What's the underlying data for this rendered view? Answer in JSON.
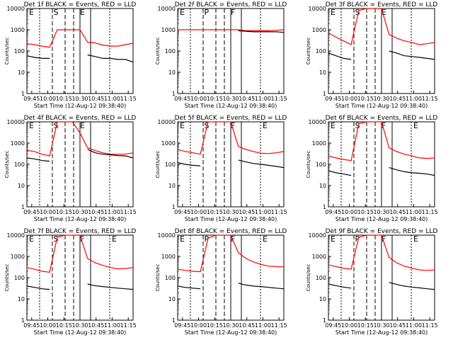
{
  "chart_data": [
    {
      "type": "line",
      "title": "Det 1f BLACK = Events, RED = LLD",
      "ylabel": "Counts/sec",
      "xlabel": "Start Time (12-Aug-12 09:38:40)",
      "xticks": [
        "09:45",
        "10:00",
        "10:15",
        "10:30",
        "10:45",
        "11:00",
        "11:15"
      ],
      "yticks": [
        "1",
        "10",
        "100",
        "1000",
        "10000"
      ],
      "yscale": "log",
      "ylim": [
        1,
        10000
      ],
      "markers": [
        "E",
        "S",
        "E"
      ],
      "series": [
        {
          "name": "LLD",
          "color": "#ff0000",
          "values": [
            220,
            200,
            170,
            150,
            1000,
            1000,
            1000,
            1000,
            260,
            240,
            190,
            170,
            170,
            200,
            230
          ]
        },
        {
          "name": "Events",
          "color": "#000000",
          "values": [
            60,
            50,
            45,
            45,
            null,
            null,
            null,
            null,
            65,
            55,
            45,
            45,
            40,
            40,
            30
          ]
        }
      ]
    },
    {
      "type": "line",
      "title": "Det 2f BLACK = Events, RED = LLD",
      "ylabel": "Counts/sec",
      "xlabel": "Start Time (12-Aug-12 09:38:40)",
      "xticks": [
        "09:45",
        "10:00",
        "10:15",
        "10:30",
        "10:45",
        "11:00",
        "11:15"
      ],
      "yticks": [
        "1",
        "10",
        "100",
        "1000",
        "10000"
      ],
      "yscale": "log",
      "ylim": [
        1,
        10000
      ],
      "markers": [
        "E",
        "P",
        "F"
      ],
      "series": [
        {
          "name": "LLD",
          "color": "#ff0000",
          "values": [
            1000,
            1000,
            1000,
            1000,
            1000,
            1000,
            1000,
            1000,
            1000,
            900,
            900,
            900,
            900,
            950,
            1000
          ]
        },
        {
          "name": "Events",
          "color": "#000000",
          "values": [
            null,
            null,
            null,
            null,
            null,
            null,
            null,
            null,
            900,
            850,
            800,
            800,
            800,
            800,
            750
          ]
        }
      ]
    },
    {
      "type": "line",
      "title": "Det 3f BLACK = Events, RED = LLD",
      "ylabel": "Counts/sec",
      "xlabel": "Start Time (12-Aug-12 09:38:40)",
      "xticks": [
        "09:45",
        "10:00",
        "10:15",
        "10:30",
        "10:45",
        "11:00",
        "11:15"
      ],
      "yticks": [
        "1",
        "10",
        "100",
        "1000",
        "10000"
      ],
      "yscale": "log",
      "ylim": [
        1,
        10000
      ],
      "markers": [
        "E",
        "S",
        "E"
      ],
      "series": [
        {
          "name": "LLD",
          "color": "#ff0000",
          "values": [
            700,
            450,
            300,
            200,
            8000,
            10000,
            10000,
            10000,
            600,
            400,
            300,
            250,
            200,
            220,
            250
          ]
        },
        {
          "name": "Events",
          "color": "#000000",
          "values": [
            80,
            60,
            45,
            40,
            null,
            null,
            null,
            null,
            100,
            80,
            60,
            55,
            50,
            45,
            40
          ]
        }
      ]
    },
    {
      "type": "line",
      "title": "Det 4f BLACK = Events, RED = LLD",
      "ylabel": "Counts/sec",
      "xlabel": "Start Time (12-Aug-12 09:38:40)",
      "xticks": [
        "09:45",
        "10:00",
        "10:15",
        "10:30",
        "10:45",
        "11:00",
        "11:15"
      ],
      "yticks": [
        "1",
        "10",
        "100",
        "1000",
        "10000"
      ],
      "yscale": "log",
      "ylim": [
        1,
        10000
      ],
      "markers": [
        "E",
        "S",
        "E"
      ],
      "series": [
        {
          "name": "LLD",
          "color": "#ff0000",
          "values": [
            450,
            400,
            300,
            250,
            10000,
            10000,
            10000,
            3000,
            600,
            450,
            350,
            300,
            300,
            300,
            350
          ]
        },
        {
          "name": "Events",
          "color": "#000000",
          "values": [
            200,
            180,
            150,
            140,
            null,
            null,
            null,
            null,
            500,
            350,
            300,
            280,
            260,
            250,
            200
          ]
        }
      ]
    },
    {
      "type": "line",
      "title": "Det 5f BLACK = Events, RED = LLD",
      "ylabel": "Counts/sec",
      "xlabel": "Start Time (12-Aug-12 09:38:40)",
      "xticks": [
        "09:45",
        "10:00",
        "10:15",
        "10:30",
        "10:45",
        "11:00",
        "11:15"
      ],
      "yticks": [
        "1",
        "10",
        "100",
        "1000",
        "10000"
      ],
      "yscale": "log",
      "ylim": [
        1,
        10000
      ],
      "markers": [
        "E",
        "S",
        "F",
        "E"
      ],
      "series": [
        {
          "name": "LLD",
          "color": "#ff0000",
          "values": [
            500,
            400,
            350,
            300,
            10000,
            10000,
            10000,
            10000,
            700,
            500,
            400,
            330,
            320,
            350,
            400
          ]
        },
        {
          "name": "Events",
          "color": "#000000",
          "values": [
            120,
            100,
            90,
            85,
            null,
            null,
            null,
            null,
            160,
            130,
            110,
            100,
            90,
            80,
            70
          ]
        }
      ]
    },
    {
      "type": "line",
      "title": "Det 6f BLACK = Events, RED = LLD",
      "ylabel": "Counts/sec",
      "xlabel": "Start Time (12-Aug-12 09:38:40)",
      "xticks": [
        "09:45",
        "10:00",
        "10:15",
        "10:30",
        "10:45",
        "11:00",
        "11:15"
      ],
      "yticks": [
        "1",
        "10",
        "100",
        "1000",
        "10000"
      ],
      "yscale": "log",
      "ylim": [
        1,
        10000
      ],
      "markers": [
        "E",
        "S",
        "F",
        "E"
      ],
      "series": [
        {
          "name": "LLD",
          "color": "#ff0000",
          "values": [
            250,
            200,
            170,
            150,
            8000,
            10000,
            10000,
            10000,
            600,
            400,
            300,
            250,
            200,
            190,
            200
          ]
        },
        {
          "name": "Events",
          "color": "#000000",
          "values": [
            50,
            40,
            35,
            30,
            null,
            null,
            null,
            null,
            70,
            55,
            45,
            40,
            38,
            35,
            30
          ]
        }
      ]
    },
    {
      "type": "line",
      "title": "Det 7f BLACK = Events, RED = LLD",
      "ylabel": "Counts/sec",
      "xlabel": "Start Time (12-Aug-12 09:38:40)",
      "xticks": [
        "09:45",
        "10:00",
        "10:15",
        "10:30",
        "10:45",
        "11:00",
        "11:15"
      ],
      "yticks": [
        "1",
        "10",
        "100",
        "1000",
        "10000"
      ],
      "yscale": "log",
      "ylim": [
        1,
        10000
      ],
      "markers": [
        "E",
        "S",
        "F",
        "E"
      ],
      "series": [
        {
          "name": "LLD",
          "color": "#ff0000",
          "values": [
            300,
            250,
            200,
            180,
            8000,
            10000,
            10000,
            10000,
            800,
            500,
            380,
            300,
            260,
            270,
            300
          ]
        },
        {
          "name": "Events",
          "color": "#000000",
          "values": [
            40,
            35,
            30,
            28,
            null,
            null,
            null,
            null,
            50,
            42,
            38,
            35,
            32,
            30,
            28
          ]
        }
      ]
    },
    {
      "type": "line",
      "title": "Det 8f BLACK = Events, RED = LLD",
      "ylabel": "Counts/sec",
      "xlabel": "Start Time (12-Aug-12 09:38:40)",
      "xticks": [
        "09:45",
        "10:00",
        "10:15",
        "10:30",
        "10:45",
        "11:00",
        "11:15"
      ],
      "yticks": [
        "1",
        "10",
        "100",
        "1000",
        "10000"
      ],
      "yscale": "log",
      "ylim": [
        1,
        10000
      ],
      "markers": [
        "E",
        "P",
        "F",
        "E"
      ],
      "series": [
        {
          "name": "LLD",
          "color": "#ff0000",
          "values": [
            250,
            220,
            200,
            190,
            7000,
            10000,
            10000,
            10000,
            1500,
            800,
            550,
            420,
            350,
            330,
            320
          ]
        },
        {
          "name": "Events",
          "color": "#000000",
          "values": [
            40,
            35,
            32,
            30,
            null,
            null,
            null,
            null,
            55,
            45,
            40,
            38,
            35,
            32,
            30
          ]
        }
      ]
    },
    {
      "type": "line",
      "title": "Det 9f BLACK = Events, RED = LLD",
      "ylabel": "Counts/sec",
      "xlabel": "Start Time (12-Aug-12 09:38:40)",
      "xticks": [
        "09:45",
        "10:00",
        "10:15",
        "10:30",
        "10:45",
        "11:00",
        "11:15"
      ],
      "yticks": [
        "1",
        "10",
        "100",
        "1000",
        "10000"
      ],
      "yscale": "log",
      "ylim": [
        1,
        10000
      ],
      "markers": [
        "E",
        "P",
        "F",
        "E"
      ],
      "series": [
        {
          "name": "LLD",
          "color": "#ff0000",
          "values": [
            400,
            330,
            280,
            250,
            8000,
            10000,
            10000,
            10000,
            900,
            500,
            350,
            280,
            230,
            220,
            230
          ]
        },
        {
          "name": "Events",
          "color": "#000000",
          "values": [
            50,
            42,
            36,
            32,
            null,
            null,
            null,
            null,
            60,
            48,
            40,
            36,
            33,
            30,
            28
          ]
        }
      ]
    }
  ]
}
